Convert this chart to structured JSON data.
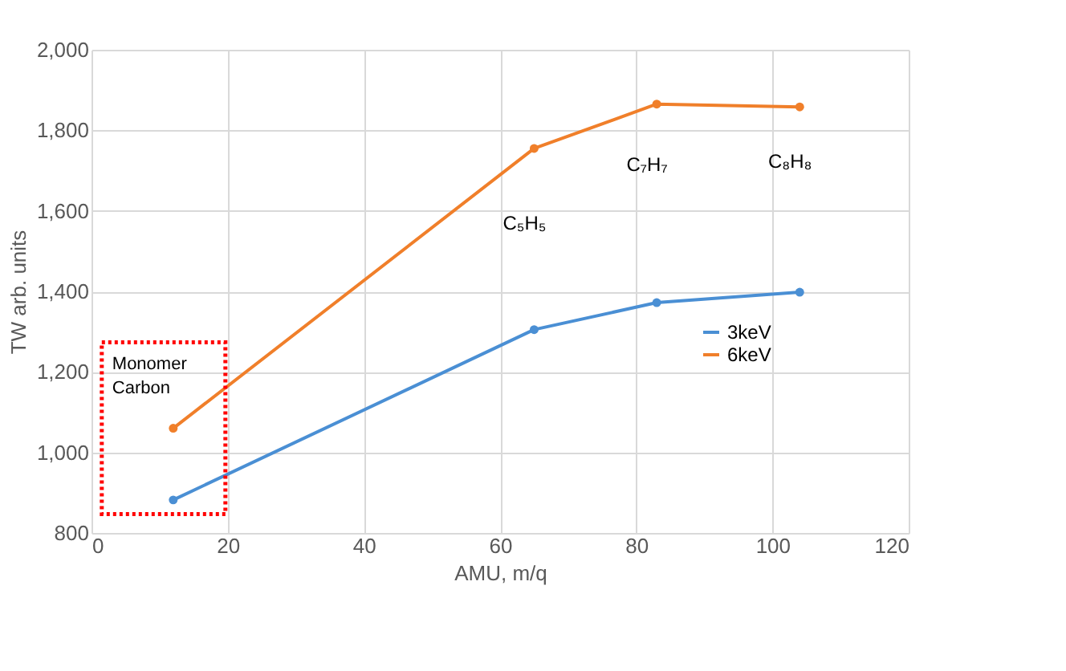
{
  "chart_data": {
    "type": "line",
    "xlabel": "AMU, m/q",
    "ylabel": "TW arb. units",
    "xlim": [
      0,
      120
    ],
    "xticks": [
      0,
      20,
      40,
      60,
      80,
      100,
      120
    ],
    "ylim": [
      800,
      2000
    ],
    "yticks": [
      {
        "value": 800,
        "label": "800"
      },
      {
        "value": 1000,
        "label": "1,000"
      },
      {
        "value": 1200,
        "label": "1,200"
      },
      {
        "value": 1400,
        "label": "1,400"
      },
      {
        "value": 1600,
        "label": "1,600"
      },
      {
        "value": 1800,
        "label": "1,800"
      },
      {
        "value": 2000,
        "label": "2,000"
      }
    ],
    "x": [
      12,
      65,
      83,
      104
    ],
    "series": [
      {
        "name": "3keV",
        "color": "#4a8fd4",
        "values": [
          882,
          1305,
          1372,
          1398
        ]
      },
      {
        "name": "6keV",
        "color": "#f07f2a",
        "values": [
          1060,
          1755,
          1865,
          1858
        ]
      }
    ],
    "annotations": [
      "C₅H₅",
      "C₇H₇",
      "C₈H₈",
      "Monomer Carbon"
    ],
    "marker": "circle",
    "line_style": "solid",
    "grid": true,
    "legend": "bottom right"
  }
}
